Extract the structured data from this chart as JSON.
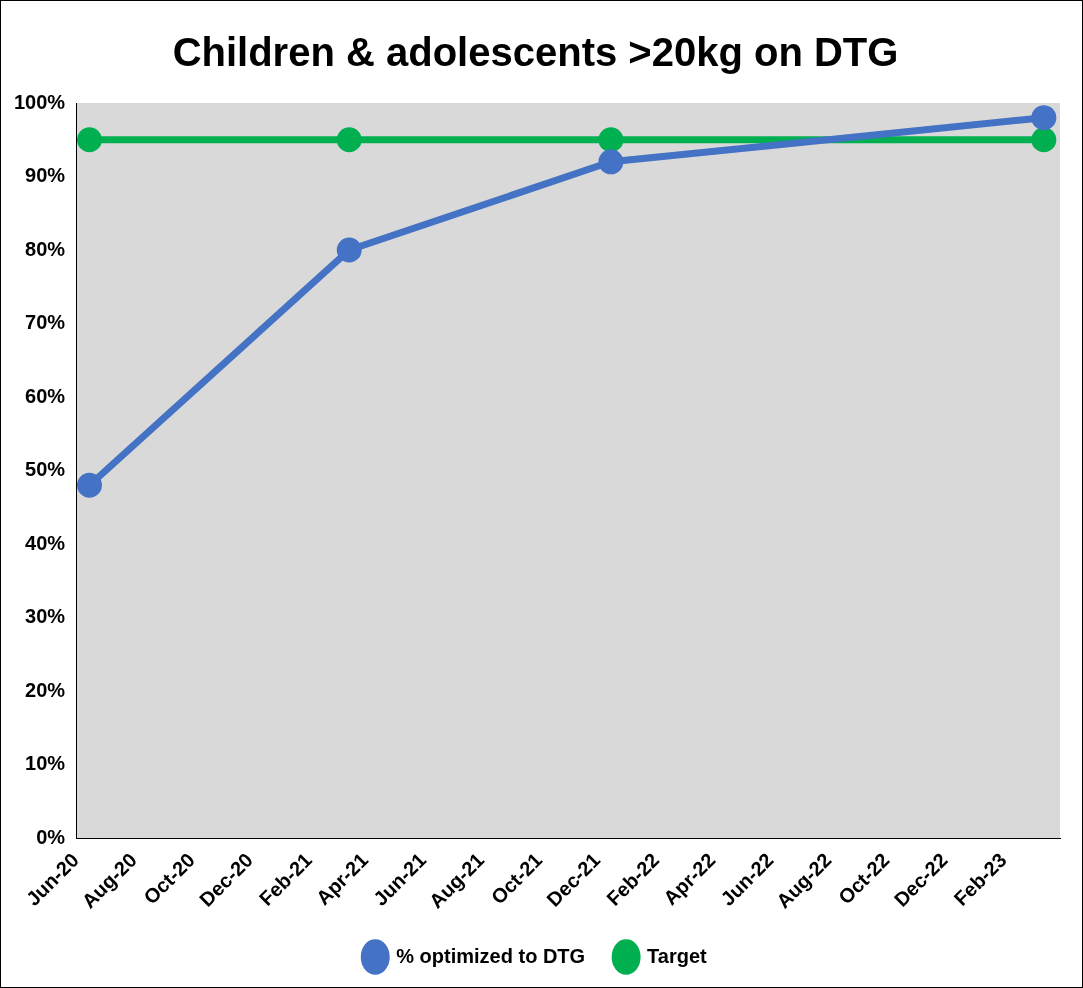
{
  "chart_data": {
    "type": "line",
    "title": "Children & adolescents >20kg on DTG",
    "x": [
      "2020-06-15",
      "2021-03-15",
      "2021-12-15",
      "2023-03-15"
    ],
    "series": [
      {
        "name": "% optimized to DTG",
        "color": "#4472c4",
        "values": [
          48,
          80,
          92,
          98
        ]
      },
      {
        "name": "Target",
        "color": "#00b050",
        "values": [
          95,
          95,
          95,
          95
        ]
      }
    ],
    "xlim": [
      "2020-06",
      "2023-04"
    ],
    "xticks": [
      {
        "value": "2020-06",
        "label": "Jun-20"
      },
      {
        "value": "2020-08",
        "label": "Aug-20"
      },
      {
        "value": "2020-10",
        "label": "Oct-20"
      },
      {
        "value": "2020-12",
        "label": "Dec-20"
      },
      {
        "value": "2021-02",
        "label": "Feb-21"
      },
      {
        "value": "2021-04",
        "label": "Apr-21"
      },
      {
        "value": "2021-06",
        "label": "Jun-21"
      },
      {
        "value": "2021-08",
        "label": "Aug-21"
      },
      {
        "value": "2021-10",
        "label": "Oct-21"
      },
      {
        "value": "2021-12",
        "label": "Dec-21"
      },
      {
        "value": "2022-02",
        "label": "Feb-22"
      },
      {
        "value": "2022-04",
        "label": "Apr-22"
      },
      {
        "value": "2022-06",
        "label": "Jun-22"
      },
      {
        "value": "2022-08",
        "label": "Aug-22"
      },
      {
        "value": "2022-10",
        "label": "Oct-22"
      },
      {
        "value": "2022-12",
        "label": "Dec-22"
      },
      {
        "value": "2023-02",
        "label": "Feb-23"
      }
    ],
    "ylim": [
      0,
      100
    ],
    "yticks": [
      {
        "value": 0,
        "label": "0%"
      },
      {
        "value": 10,
        "label": "10%"
      },
      {
        "value": 20,
        "label": "20%"
      },
      {
        "value": 30,
        "label": "30%"
      },
      {
        "value": 40,
        "label": "40%"
      },
      {
        "value": 50,
        "label": "50%"
      },
      {
        "value": 60,
        "label": "60%"
      },
      {
        "value": 70,
        "label": "70%"
      },
      {
        "value": 80,
        "label": "80%"
      },
      {
        "value": 90,
        "label": "90%"
      },
      {
        "value": 100,
        "label": "100%"
      }
    ],
    "grid": false,
    "legend": "bottom",
    "marker": "circle",
    "line_style": "solid"
  }
}
